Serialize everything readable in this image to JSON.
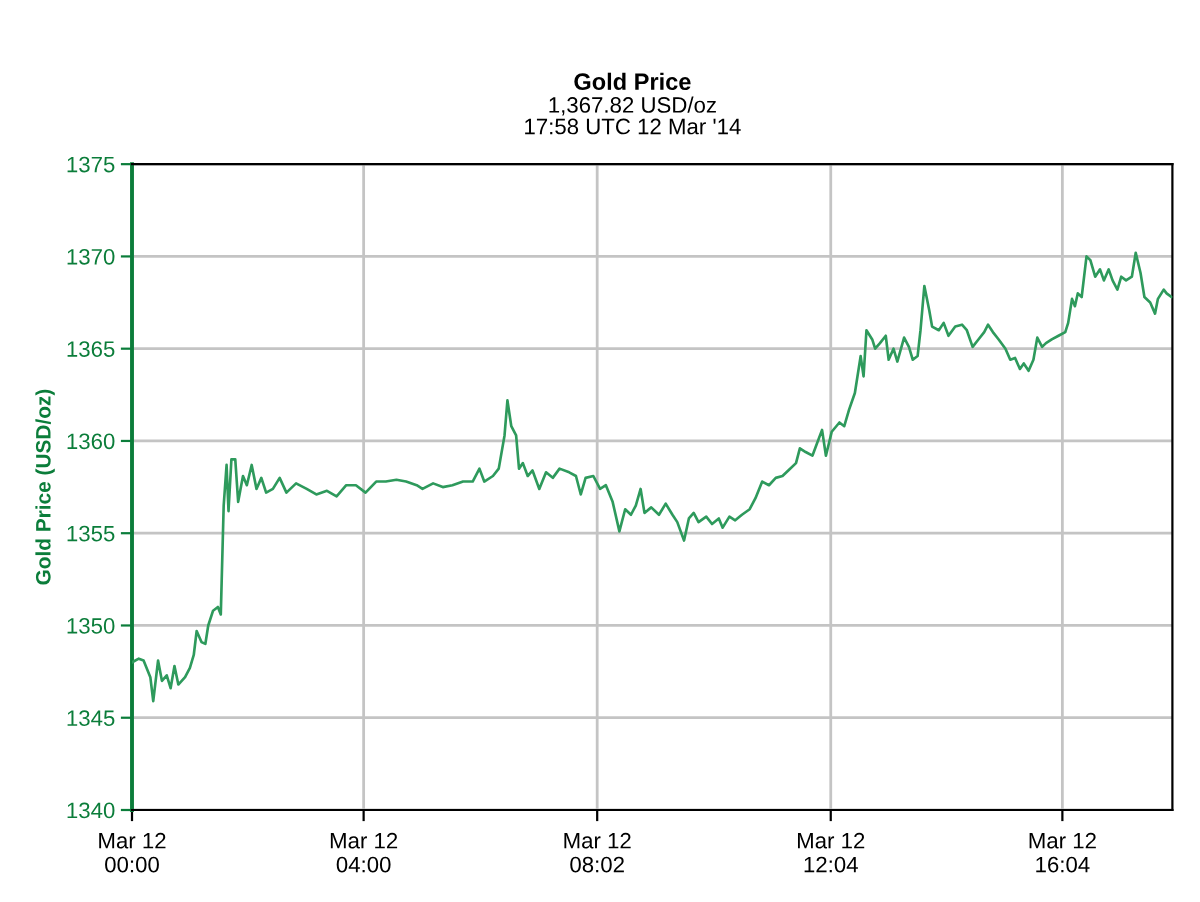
{
  "chart_data": {
    "type": "line",
    "title": "Gold Price",
    "subtitle": "1,367.82 USD/oz\n17:58 UTC 12 Mar '14",
    "ylabel": "Gold Price (USD/oz)",
    "xlim": [
      "2014-03-12T00:00",
      "2014-03-12T17:58"
    ],
    "ylim": [
      1340,
      1375
    ],
    "xticks": [
      {
        "value": "2014-03-12T00:00",
        "label": "Mar 12\n00:00"
      },
      {
        "value": "2014-03-12T04:00",
        "label": "Mar 12\n04:00"
      },
      {
        "value": "2014-03-12T08:02",
        "label": "Mar 12\n08:02"
      },
      {
        "value": "2014-03-12T12:04",
        "label": "Mar 12\n12:04"
      },
      {
        "value": "2014-03-12T16:04",
        "label": "Mar 12\n16:04"
      }
    ],
    "yticks": [
      1340,
      1345,
      1350,
      1355,
      1360,
      1365,
      1370,
      1375
    ],
    "grid": true,
    "line_style": "solid",
    "series": [
      {
        "color": "#2e9a5c",
        "x": [
          "2014-03-12T00:00",
          "2014-03-12T00:07",
          "2014-03-12T00:12",
          "2014-03-12T00:19",
          "2014-03-12T00:22",
          "2014-03-12T00:27",
          "2014-03-12T00:31",
          "2014-03-12T00:36",
          "2014-03-12T00:40",
          "2014-03-12T00:44",
          "2014-03-12T00:48",
          "2014-03-12T00:55",
          "2014-03-12T01:00",
          "2014-03-12T01:04",
          "2014-03-12T01:07",
          "2014-03-12T01:12",
          "2014-03-12T01:16",
          "2014-03-12T01:19",
          "2014-03-12T01:24",
          "2014-03-12T01:29",
          "2014-03-12T01:32",
          "2014-03-12T01:35",
          "2014-03-12T01:38",
          "2014-03-12T01:40",
          "2014-03-12T01:43",
          "2014-03-12T01:47",
          "2014-03-12T01:50",
          "2014-03-12T01:55",
          "2014-03-12T01:59",
          "2014-03-12T02:04",
          "2014-03-12T02:09",
          "2014-03-12T02:14",
          "2014-03-12T02:19",
          "2014-03-12T02:26",
          "2014-03-12T02:33",
          "2014-03-12T02:40",
          "2014-03-12T02:50",
          "2014-03-12T03:01",
          "2014-03-12T03:11",
          "2014-03-12T03:22",
          "2014-03-12T03:32",
          "2014-03-12T03:42",
          "2014-03-12T03:52",
          "2014-03-12T04:02",
          "2014-03-12T04:13",
          "2014-03-12T04:23",
          "2014-03-12T04:34",
          "2014-03-12T04:44",
          "2014-03-12T04:55",
          "2014-03-12T05:01",
          "2014-03-12T05:12",
          "2014-03-12T05:22",
          "2014-03-12T05:32",
          "2014-03-12T05:43",
          "2014-03-12T05:53",
          "2014-03-12T06:00",
          "2014-03-12T06:05",
          "2014-03-12T06:14",
          "2014-03-12T06:20",
          "2014-03-12T06:26",
          "2014-03-12T06:29",
          "2014-03-12T06:33",
          "2014-03-12T06:38",
          "2014-03-12T06:41",
          "2014-03-12T06:45",
          "2014-03-12T06:50",
          "2014-03-12T06:55",
          "2014-03-12T07:02",
          "2014-03-12T07:09",
          "2014-03-12T07:16",
          "2014-03-12T07:23",
          "2014-03-12T07:33",
          "2014-03-12T07:40",
          "2014-03-12T07:45",
          "2014-03-12T07:50",
          "2014-03-12T07:58",
          "2014-03-12T08:05",
          "2014-03-12T08:11",
          "2014-03-12T08:18",
          "2014-03-12T08:25",
          "2014-03-12T08:31",
          "2014-03-12T08:37",
          "2014-03-12T08:42",
          "2014-03-12T08:47",
          "2014-03-12T08:51",
          "2014-03-12T08:58",
          "2014-03-12T09:06",
          "2014-03-12T09:13",
          "2014-03-12T09:20",
          "2014-03-12T09:25",
          "2014-03-12T09:32",
          "2014-03-12T09:37",
          "2014-03-12T09:42",
          "2014-03-12T09:47",
          "2014-03-12T09:55",
          "2014-03-12T10:01",
          "2014-03-12T10:08",
          "2014-03-12T10:12",
          "2014-03-12T10:19",
          "2014-03-12T10:25",
          "2014-03-12T10:32",
          "2014-03-12T10:40",
          "2014-03-12T10:46",
          "2014-03-12T10:53",
          "2014-03-12T11:00",
          "2014-03-12T11:07",
          "2014-03-12T11:14",
          "2014-03-12T11:20",
          "2014-03-12T11:28",
          "2014-03-12T11:32",
          "2014-03-12T11:38",
          "2014-03-12T11:45",
          "2014-03-12T11:50",
          "2014-03-12T11:55",
          "2014-03-12T11:59",
          "2014-03-12T12:05",
          "2014-03-12T12:13",
          "2014-03-12T12:18",
          "2014-03-12T12:23",
          "2014-03-12T12:29",
          "2014-03-12T12:35",
          "2014-03-12T12:38",
          "2014-03-12T12:41",
          "2014-03-12T12:47",
          "2014-03-12T12:50",
          "2014-03-12T12:55",
          "2014-03-12T13:01",
          "2014-03-12T13:04",
          "2014-03-12T13:09",
          "2014-03-12T13:13",
          "2014-03-12T13:20",
          "2014-03-12T13:25",
          "2014-03-12T13:29",
          "2014-03-12T13:34",
          "2014-03-12T13:37",
          "2014-03-12T13:41",
          "2014-03-12T13:46",
          "2014-03-12T13:49",
          "2014-03-12T13:56",
          "2014-03-12T14:01",
          "2014-03-12T14:06",
          "2014-03-12T14:13",
          "2014-03-12T14:20",
          "2014-03-12T14:25",
          "2014-03-12T14:31",
          "2014-03-12T14:37",
          "2014-03-12T14:43",
          "2014-03-12T14:47",
          "2014-03-12T14:52",
          "2014-03-12T14:58",
          "2014-03-12T15:05",
          "2014-03-12T15:10",
          "2014-03-12T15:15",
          "2014-03-12T15:20",
          "2014-03-12T15:24",
          "2014-03-12T15:29",
          "2014-03-12T15:34",
          "2014-03-12T15:38",
          "2014-03-12T15:43",
          "2014-03-12T15:47",
          "2014-03-12T15:53",
          "2014-03-12T16:00",
          "2014-03-12T16:07",
          "2014-03-12T16:10",
          "2014-03-12T16:14",
          "2014-03-12T16:17",
          "2014-03-12T16:20",
          "2014-03-12T16:24",
          "2014-03-12T16:29",
          "2014-03-12T16:33",
          "2014-03-12T16:38",
          "2014-03-12T16:43",
          "2014-03-12T16:47",
          "2014-03-12T16:52",
          "2014-03-12T16:56",
          "2014-03-12T17:01",
          "2014-03-12T17:05",
          "2014-03-12T17:10",
          "2014-03-12T17:16",
          "2014-03-12T17:20",
          "2014-03-12T17:25",
          "2014-03-12T17:29",
          "2014-03-12T17:35",
          "2014-03-12T17:40",
          "2014-03-12T17:43",
          "2014-03-12T17:49",
          "2014-03-12T17:52",
          "2014-03-12T17:57"
        ],
        "values": [
          1348.0,
          1348.2,
          1348.1,
          1347.2,
          1345.9,
          1348.1,
          1347.0,
          1347.3,
          1346.6,
          1347.8,
          1346.8,
          1347.2,
          1347.7,
          1348.4,
          1349.7,
          1349.1,
          1349.0,
          1350.0,
          1350.8,
          1351.0,
          1350.6,
          1356.5,
          1358.7,
          1356.2,
          1359.0,
          1359.0,
          1356.7,
          1358.1,
          1357.6,
          1358.7,
          1357.4,
          1358.0,
          1357.2,
          1357.4,
          1358.0,
          1357.2,
          1357.7,
          1357.4,
          1357.1,
          1357.3,
          1357.0,
          1357.6,
          1357.6,
          1357.2,
          1357.8,
          1357.8,
          1357.9,
          1357.8,
          1357.6,
          1357.4,
          1357.7,
          1357.5,
          1357.6,
          1357.8,
          1357.8,
          1358.5,
          1357.8,
          1358.1,
          1358.5,
          1360.3,
          1362.2,
          1360.8,
          1360.3,
          1358.5,
          1358.8,
          1358.1,
          1358.4,
          1357.4,
          1358.3,
          1358.0,
          1358.5,
          1358.3,
          1358.1,
          1357.1,
          1358.0,
          1358.1,
          1357.4,
          1357.6,
          1356.7,
          1355.1,
          1356.3,
          1356.0,
          1356.5,
          1357.4,
          1356.1,
          1356.4,
          1356.0,
          1356.6,
          1356.0,
          1355.6,
          1354.6,
          1355.8,
          1356.1,
          1355.6,
          1355.9,
          1355.5,
          1355.8,
          1355.3,
          1355.9,
          1355.7,
          1356.0,
          1356.3,
          1356.9,
          1357.8,
          1357.6,
          1358.0,
          1358.1,
          1358.4,
          1358.8,
          1359.6,
          1359.4,
          1359.2,
          1359.9,
          1360.6,
          1359.2,
          1360.5,
          1361.0,
          1360.8,
          1361.7,
          1362.6,
          1364.6,
          1363.5,
          1366.0,
          1365.5,
          1365.0,
          1365.3,
          1365.7,
          1364.4,
          1365.0,
          1364.3,
          1365.6,
          1365.1,
          1364.4,
          1364.6,
          1366.0,
          1368.4,
          1367.1,
          1366.2,
          1366.0,
          1366.4,
          1365.7,
          1366.2,
          1366.3,
          1366.0,
          1365.1,
          1365.5,
          1365.9,
          1366.3,
          1365.9,
          1365.5,
          1365.0,
          1364.4,
          1364.5,
          1363.9,
          1364.2,
          1363.8,
          1364.4,
          1365.6,
          1365.1,
          1365.3,
          1365.5,
          1365.7,
          1365.9,
          1366.4,
          1367.7,
          1367.3,
          1368.0,
          1367.8,
          1370.0,
          1369.8,
          1368.9,
          1369.3,
          1368.7,
          1369.3,
          1368.7,
          1368.2,
          1368.9,
          1368.7,
          1368.9,
          1370.2,
          1369.1,
          1367.8,
          1367.5,
          1366.9,
          1367.7,
          1368.2,
          1368.0,
          1367.8
        ]
      }
    ]
  }
}
